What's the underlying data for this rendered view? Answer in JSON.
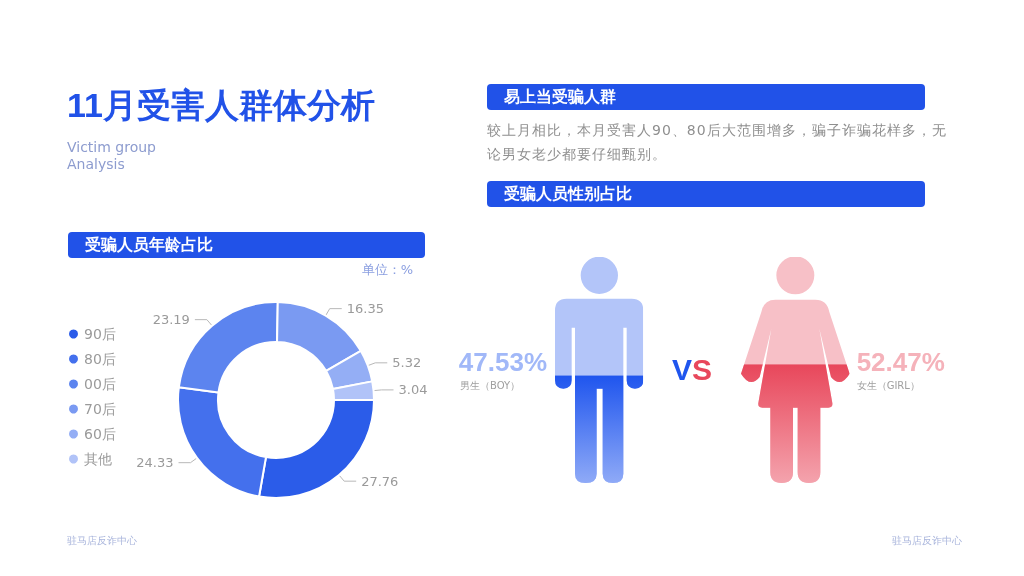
{
  "chart_data": [
    {
      "type": "other",
      "title": "11月受害人群体分析",
      "subtitle": "Victim group Analysis"
    },
    {
      "type": "other",
      "title": "易上当受骗人群",
      "annotations": [
        "较上月相比，本月受害人90、80后大范围增多，骗子诈骗花样多，无论男女老少都要仔细甄别。"
      ]
    },
    {
      "type": "donut",
      "title": "受骗人员年龄占比",
      "categories": [
        "90后",
        "80后",
        "00后",
        "70后",
        "60后",
        "其他"
      ],
      "values": [
        27.76,
        24.33,
        23.19,
        16.35,
        5.32,
        3.04
      ],
      "colors": [
        "#2b5ce9",
        "#4470ed",
        "#5c84ef",
        "#7a9af2",
        "#94aef5",
        "#b1c3f8"
      ],
      "data_labels": true,
      "legend": "left",
      "annotations": [
        "单位：%",
        "驻马店反诈中心"
      ]
    },
    {
      "type": "other",
      "title": "受骗人员性别占比",
      "categories": [
        "男生（BOY）",
        "女生（GIRL）"
      ],
      "values": [
        47.53,
        52.47
      ],
      "value_labels": [
        "47.53%",
        "52.47%"
      ],
      "colors": [
        "#1f55ee",
        "#e8475b"
      ],
      "annotations": [
        "VS",
        "驻马店反诈中心"
      ]
    }
  ]
}
